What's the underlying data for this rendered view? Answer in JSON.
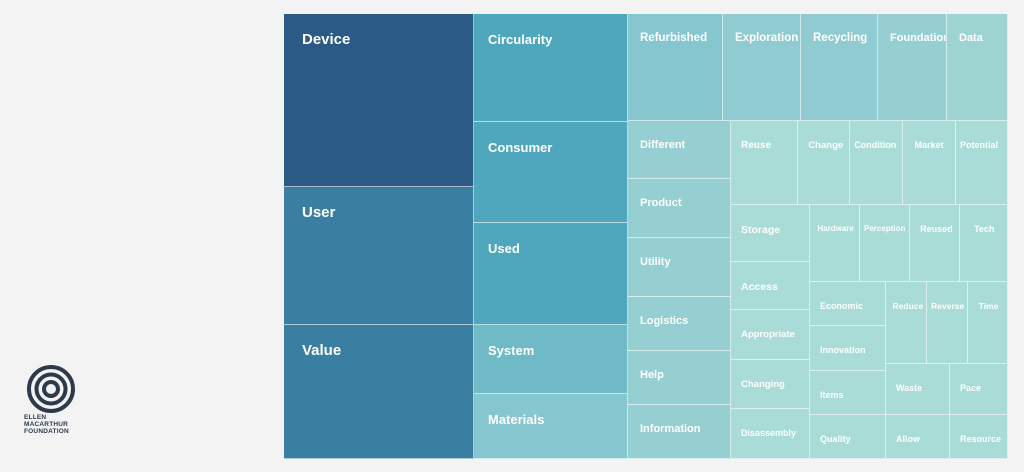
{
  "chart_data": {
    "type": "treemap",
    "colors": {
      "dark": "#2c5a86",
      "mid": "#3a7fa2",
      "teal": "#4fa7bd",
      "light": "#86c6cf",
      "pale": "#a9dcd6"
    },
    "items": [
      {
        "label": "Device",
        "tier": 1
      },
      {
        "label": "User",
        "tier": 1
      },
      {
        "label": "Value",
        "tier": 1
      },
      {
        "label": "Circularity",
        "tier": 2
      },
      {
        "label": "Consumer",
        "tier": 2
      },
      {
        "label": "Used",
        "tier": 2
      },
      {
        "label": "System",
        "tier": 2
      },
      {
        "label": "Materials",
        "tier": 2
      },
      {
        "label": "Refurbished",
        "tier": 3
      },
      {
        "label": "Exploration",
        "tier": 3
      },
      {
        "label": "Recycling",
        "tier": 3
      },
      {
        "label": "Foundation",
        "tier": 3
      },
      {
        "label": "Data",
        "tier": 3
      },
      {
        "label": "Different",
        "tier": 3
      },
      {
        "label": "Product",
        "tier": 3
      },
      {
        "label": "Utility",
        "tier": 3
      },
      {
        "label": "Logistics",
        "tier": 3
      },
      {
        "label": "Help",
        "tier": 3
      },
      {
        "label": "Information",
        "tier": 3
      },
      {
        "label": "Reuse",
        "tier": 4
      },
      {
        "label": "Change",
        "tier": 4
      },
      {
        "label": "Condition",
        "tier": 4
      },
      {
        "label": "Market",
        "tier": 4
      },
      {
        "label": "Potential",
        "tier": 4
      },
      {
        "label": "Storage",
        "tier": 4
      },
      {
        "label": "Access",
        "tier": 4
      },
      {
        "label": "Appropriate",
        "tier": 4
      },
      {
        "label": "Changing",
        "tier": 4
      },
      {
        "label": "Disassembly",
        "tier": 4
      },
      {
        "label": "Hardware",
        "tier": 5
      },
      {
        "label": "Perception",
        "tier": 5
      },
      {
        "label": "Reused",
        "tier": 5
      },
      {
        "label": "Tech",
        "tier": 5
      },
      {
        "label": "Economic",
        "tier": 5
      },
      {
        "label": "Innovation",
        "tier": 5
      },
      {
        "label": "Items",
        "tier": 5
      },
      {
        "label": "Quality",
        "tier": 5
      },
      {
        "label": "Reduce",
        "tier": 5
      },
      {
        "label": "Reverse",
        "tier": 5
      },
      {
        "label": "Time",
        "tier": 5
      },
      {
        "label": "Waste",
        "tier": 5
      },
      {
        "label": "Pace",
        "tier": 5
      },
      {
        "label": "Allow",
        "tier": 5
      },
      {
        "label": "Resource",
        "tier": 5
      }
    ]
  },
  "logo": {
    "lines": [
      "ELLEN",
      "MACARTHUR",
      "FOUNDATION"
    ]
  }
}
